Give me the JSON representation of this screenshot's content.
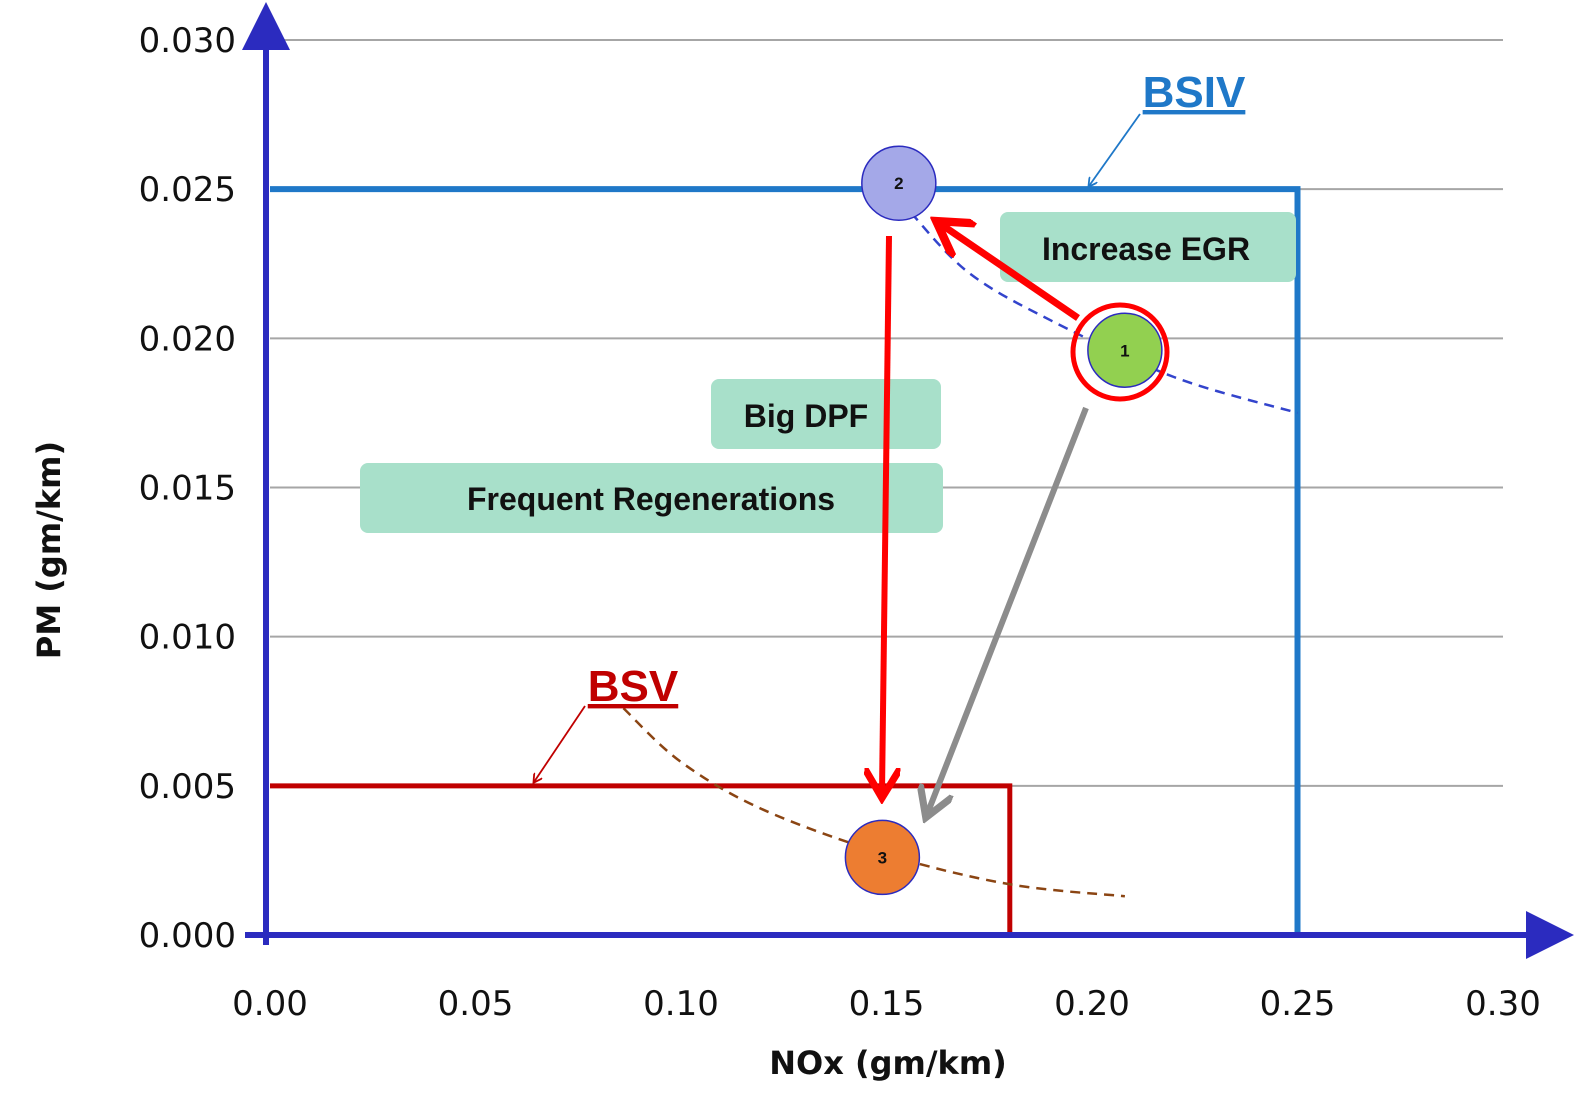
{
  "chart_data": {
    "type": "line",
    "xlabel": "NOx (gm/km)",
    "ylabel": "PM (gm/km)",
    "xlim": [
      0,
      0.3
    ],
    "ylim": [
      0,
      0.03
    ],
    "x_ticks": [
      "0.00",
      "0.05",
      "0.10",
      "0.15",
      "0.20",
      "0.25",
      "0.30"
    ],
    "y_ticks": [
      "0.000",
      "0.005",
      "0.010",
      "0.015",
      "0.020",
      "0.025",
      "0.030"
    ],
    "grid": "horizontal",
    "limits": [
      {
        "label": "BSIV",
        "nox": 0.25,
        "pm": 0.025,
        "color": "#1f78c8"
      },
      {
        "label": "BSV",
        "nox": 0.18,
        "pm": 0.005,
        "color": "#c00000"
      }
    ],
    "points": [
      {
        "label": "1",
        "nox": 0.208,
        "pm": 0.0196,
        "color": "#92d050"
      },
      {
        "label": "2",
        "nox": 0.153,
        "pm": 0.0252,
        "color": "#a4a8e8"
      },
      {
        "label": "3",
        "nox": 0.149,
        "pm": 0.0026,
        "color": "#ed7d31"
      }
    ],
    "tradeoff_curves": [
      {
        "color": "#3344cc",
        "points": [
          [
            0.156,
            0.0242
          ],
          [
            0.17,
            0.0222
          ],
          [
            0.19,
            0.0206
          ],
          [
            0.22,
            0.0187
          ],
          [
            0.25,
            0.0175
          ]
        ]
      },
      {
        "color": "#8b4513",
        "points": [
          [
            0.086,
            0.0076
          ],
          [
            0.1,
            0.0058
          ],
          [
            0.12,
            0.0042
          ],
          [
            0.15,
            0.0027
          ],
          [
            0.18,
            0.0017
          ],
          [
            0.208,
            0.0013
          ]
        ]
      }
    ],
    "annotations": [
      {
        "text": "Increase EGR"
      },
      {
        "text": "Big DPF"
      },
      {
        "text": "Frequent Regenerations"
      }
    ]
  }
}
